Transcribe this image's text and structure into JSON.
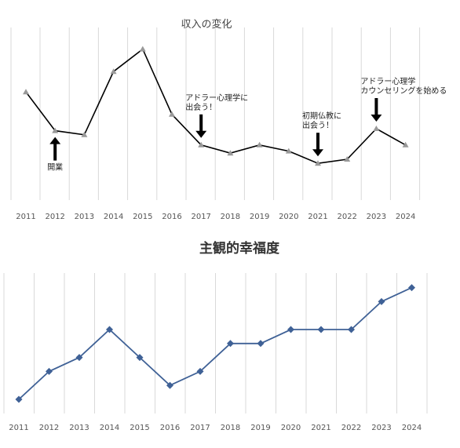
{
  "chart_data": [
    {
      "type": "line",
      "title": "収入の変化",
      "categories": [
        "2011",
        "2012",
        "2013",
        "2014",
        "2015",
        "2016",
        "2017",
        "2018",
        "2019",
        "2020",
        "2021",
        "2022",
        "2023",
        "2024"
      ],
      "series": [
        {
          "values": [
            53,
            34,
            32,
            63,
            74,
            42,
            27,
            23,
            27,
            24,
            18,
            20,
            35,
            27
          ],
          "color": "#000000",
          "marker": "triangle",
          "marker_color": "#999999"
        }
      ],
      "annotations": [
        {
          "category": "2012",
          "text": [
            "開業"
          ],
          "arrow": "up"
        },
        {
          "category": "2017",
          "text": [
            "アドラー心理学に",
            "出会う！"
          ],
          "arrow": "down"
        },
        {
          "category": "2021",
          "text": [
            "初期仏教に",
            "出会う！"
          ],
          "arrow": "down"
        },
        {
          "category": "2023",
          "text": [
            "アドラー心理学",
            "カウンセリングを始める"
          ],
          "arrow": "down"
        }
      ],
      "grid": "vertical"
    },
    {
      "type": "line",
      "title": "主観的幸福度",
      "categories": [
        "2011",
        "2012",
        "2013",
        "2014",
        "2015",
        "2016",
        "2017",
        "2018",
        "2019",
        "2020",
        "2021",
        "2022",
        "2023",
        "2024"
      ],
      "series": [
        {
          "values": [
            1,
            3,
            4,
            6,
            4,
            2,
            3,
            5,
            5,
            6,
            6,
            6,
            8,
            9
          ],
          "color": "#3f6196",
          "marker": "diamond"
        }
      ],
      "grid": "vertical"
    }
  ]
}
